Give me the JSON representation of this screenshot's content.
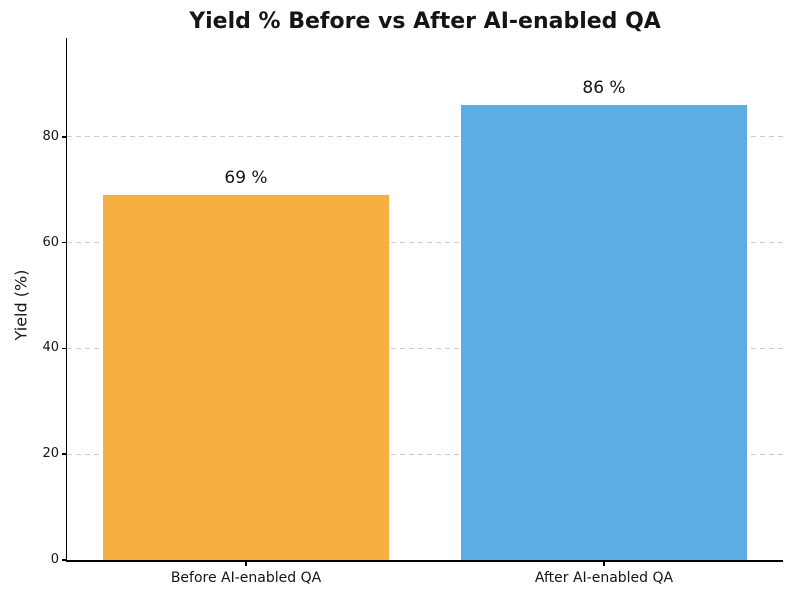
{
  "chart_data": {
    "type": "bar",
    "title": "Yield % Before vs After AI-enabled QA",
    "xlabel": "",
    "ylabel": "Yield (%)",
    "categories": [
      "Before AI-enabled QA",
      "After AI-enabled QA"
    ],
    "values": [
      69,
      86
    ],
    "value_labels": [
      "69 %",
      "86 %"
    ],
    "bar_colors": [
      "#f5b041",
      "#5dade2"
    ],
    "bar_width_fraction": 0.8,
    "yticks": [
      0,
      20,
      40,
      60,
      80
    ],
    "ytick_labels": [
      "0",
      "20",
      "40",
      "60",
      "80"
    ],
    "ylim": [
      0,
      98.7
    ],
    "grid": {
      "horizontal": true,
      "style": "dashed",
      "color": "#cccccc",
      "behind_bars": true
    },
    "legend": null,
    "background": "#ffffff",
    "axis_color": "#000000",
    "text_color": "#151515"
  }
}
